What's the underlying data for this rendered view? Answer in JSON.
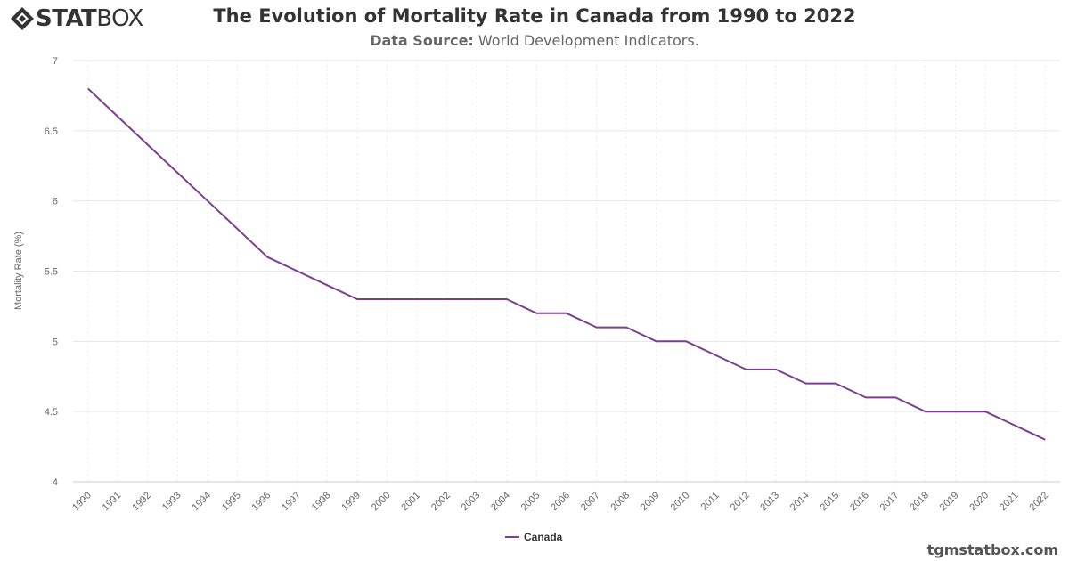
{
  "branding": {
    "logo_bold": "STAT",
    "logo_light": "BOX",
    "icon": "statbox-diamond-icon",
    "watermark": "tgmstatbox.com"
  },
  "header": {
    "title": "The Evolution of Mortality Rate in Canada from 1990 to 2022",
    "source_label": "Data Source:",
    "source_text": "World Development Indicators."
  },
  "chart_data": {
    "type": "line",
    "title": "The Evolution of Mortality Rate in Canada from 1990 to 2022",
    "subtitle": "Data Source: World Development Indicators.",
    "xlabel": "",
    "ylabel": "Mortality Rate (%)",
    "ylim": [
      4,
      7
    ],
    "yticks": [
      4,
      4.5,
      5,
      5.5,
      6,
      6.5,
      7
    ],
    "grid": true,
    "legend_position": "bottom-center",
    "categories": [
      "1990",
      "1991",
      "1992",
      "1993",
      "1994",
      "1995",
      "1996",
      "1997",
      "1998",
      "1999",
      "2000",
      "2001",
      "2002",
      "2003",
      "2004",
      "2005",
      "2006",
      "2007",
      "2008",
      "2009",
      "2010",
      "2011",
      "2012",
      "2013",
      "2014",
      "2015",
      "2016",
      "2017",
      "2018",
      "2019",
      "2020",
      "2021",
      "2022"
    ],
    "series": [
      {
        "name": "Canada",
        "color": "#7b3f8f",
        "values": [
          6.8,
          6.6,
          6.4,
          6.2,
          6.0,
          5.8,
          5.6,
          5.5,
          5.4,
          5.3,
          5.3,
          5.3,
          5.3,
          5.3,
          5.3,
          5.2,
          5.2,
          5.1,
          5.1,
          5.0,
          5.0,
          4.9,
          4.8,
          4.8,
          4.7,
          4.7,
          4.6,
          4.6,
          4.5,
          4.5,
          4.5,
          4.4,
          4.3
        ]
      }
    ]
  }
}
